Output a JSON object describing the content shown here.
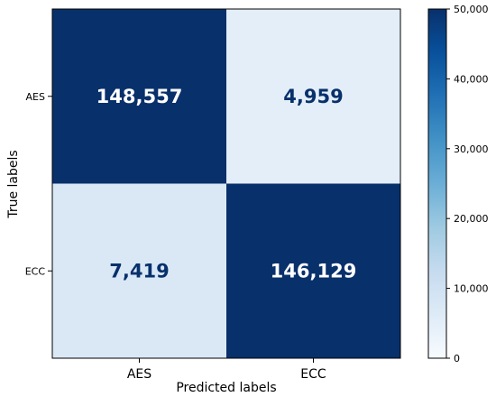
{
  "chart_data": {
    "type": "heatmap",
    "title": "",
    "xlabel": "Predicted labels",
    "ylabel": "True labels",
    "x_categories": [
      "AES",
      "ECC"
    ],
    "y_categories": [
      "AES",
      "ECC"
    ],
    "cells": [
      [
        148557,
        4959
      ],
      [
        7419,
        146129
      ]
    ],
    "cell_labels": [
      [
        "148,557",
        "4,959"
      ],
      [
        "7,419",
        "146,129"
      ]
    ],
    "colorbar": {
      "range": [
        0,
        50000
      ],
      "colormap": "Blues",
      "ticks": [
        0,
        10000,
        20000,
        30000,
        40000,
        50000
      ],
      "tick_labels": [
        "0",
        "10,000",
        "20,000",
        "30,000",
        "40,000",
        "50,000"
      ]
    },
    "colors": {
      "low": "#f7fbff",
      "high": "#08306b",
      "label_on_dark": "#ffffff",
      "label_on_light": "#08306b"
    }
  }
}
